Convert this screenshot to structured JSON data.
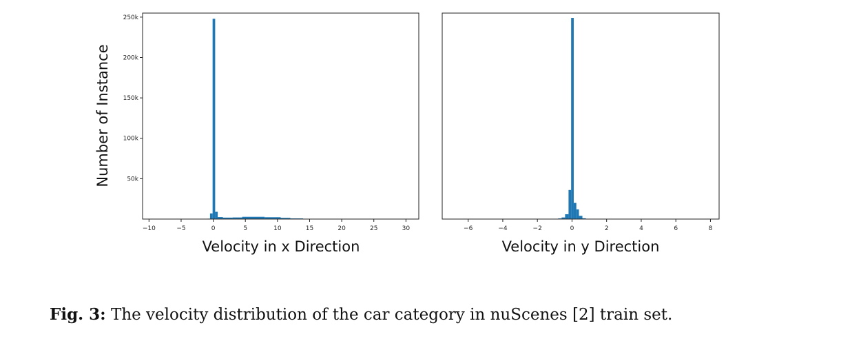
{
  "colors": {
    "bar": "#1f77b4",
    "frame": "#222222"
  },
  "y_axis_label": "Number of Instance",
  "caption": {
    "label": "Fig. 3:",
    "text": "The velocity distribution of the car category in nuScenes [2] train set."
  },
  "chart_data": [
    {
      "type": "bar",
      "xlabel": "Velocity in x Direction",
      "ylabel": "Number of Instance",
      "xlim": [
        -11,
        32
      ],
      "ylim": [
        0,
        255000
      ],
      "xticks": [
        -10,
        -5,
        0,
        5,
        10,
        15,
        20,
        25,
        30
      ],
      "xtick_labels": [
        "−10",
        "−5",
        "0",
        "5",
        "10",
        "15",
        "20",
        "25",
        "30"
      ],
      "yticks": [
        50000,
        100000,
        150000,
        200000,
        250000
      ],
      "ytick_labels": [
        "50k",
        "100k",
        "150k",
        "200k",
        "250k"
      ],
      "bins": [
        {
          "x0": -0.9,
          "x1": -0.5,
          "value": 500
        },
        {
          "x0": -0.5,
          "x1": -0.1,
          "value": 7000
        },
        {
          "x0": -0.1,
          "x1": 0.3,
          "value": 248000
        },
        {
          "x0": 0.3,
          "x1": 0.7,
          "value": 9000
        },
        {
          "x0": 0.7,
          "x1": 1.5,
          "value": 2500
        },
        {
          "x0": 1.5,
          "x1": 3.0,
          "value": 1800
        },
        {
          "x0": 3.0,
          "x1": 4.5,
          "value": 2000
        },
        {
          "x0": 4.5,
          "x1": 8.0,
          "value": 2800
        },
        {
          "x0": 8.0,
          "x1": 10.5,
          "value": 2300
        },
        {
          "x0": 10.5,
          "x1": 12.0,
          "value": 1500
        },
        {
          "x0": 12.0,
          "x1": 14.0,
          "value": 800
        },
        {
          "x0": 14.0,
          "x1": 16.0,
          "value": 300
        }
      ]
    },
    {
      "type": "bar",
      "xlabel": "Velocity in y Direction",
      "ylabel": "",
      "xlim": [
        -7.5,
        8.5
      ],
      "ylim": [
        0,
        255000
      ],
      "xticks": [
        -6,
        -4,
        -2,
        0,
        2,
        4,
        6,
        8
      ],
      "xtick_labels": [
        "−6",
        "−4",
        "−2",
        "0",
        "2",
        "4",
        "6",
        "8"
      ],
      "yticks": [],
      "ytick_labels": [],
      "bins": [
        {
          "x0": -0.8,
          "x1": -0.6,
          "value": 800
        },
        {
          "x0": -0.6,
          "x1": -0.4,
          "value": 2000
        },
        {
          "x0": -0.4,
          "x1": -0.2,
          "value": 6000
        },
        {
          "x0": -0.2,
          "x1": -0.05,
          "value": 36000
        },
        {
          "x0": -0.05,
          "x1": 0.1,
          "value": 249000
        },
        {
          "x0": 0.1,
          "x1": 0.25,
          "value": 20000
        },
        {
          "x0": 0.25,
          "x1": 0.4,
          "value": 12000
        },
        {
          "x0": 0.4,
          "x1": 0.6,
          "value": 4000
        },
        {
          "x0": 0.6,
          "x1": 0.8,
          "value": 1000
        }
      ]
    }
  ]
}
